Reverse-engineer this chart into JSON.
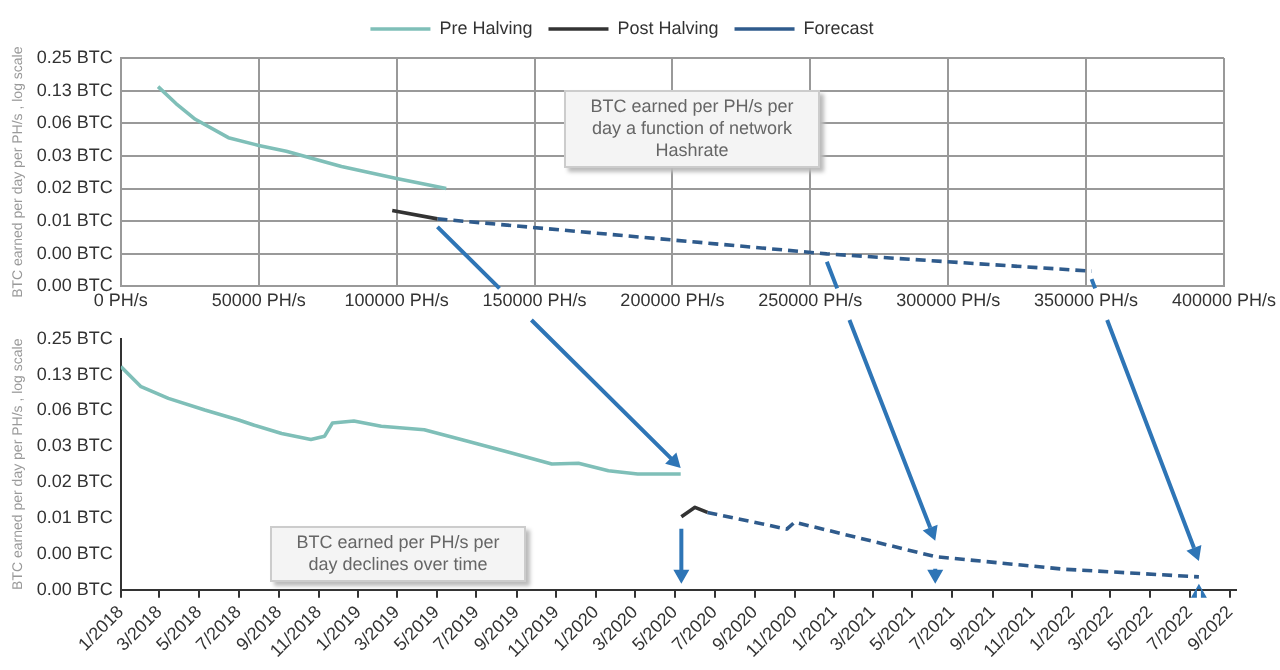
{
  "chart_data": [
    {
      "type": "line",
      "ylabel": "BTC earned per day per PH/s , log scale",
      "log": "y",
      "grid": true,
      "legend": "top",
      "marker": "none",
      "xlim": [
        0,
        400000
      ],
      "xticks": [
        {
          "value": 0,
          "label": "0 PH/s"
        },
        {
          "value": 50000,
          "label": "50000 PH/s"
        },
        {
          "value": 100000,
          "label": "100000 PH/s"
        },
        {
          "value": 150000,
          "label": "150000 PH/s"
        },
        {
          "value": 200000,
          "label": "200000 PH/s"
        },
        {
          "value": 250000,
          "label": "250000 PH/s"
        },
        {
          "value": 300000,
          "label": "300000 PH/s"
        },
        {
          "value": 350000,
          "label": "350000 PH/s"
        },
        {
          "value": 400000,
          "label": "400000 PH/s"
        }
      ],
      "ylim": [
        0.001953125,
        0.25
      ],
      "yticks": [
        {
          "value": 0.001953125,
          "label": "0.00 BTC"
        },
        {
          "value": 0.00390625,
          "label": "0.00 BTC"
        },
        {
          "value": 0.0078125,
          "label": "0.01 BTC"
        },
        {
          "value": 0.015625,
          "label": "0.02 BTC"
        },
        {
          "value": 0.03125,
          "label": "0.03 BTC"
        },
        {
          "value": 0.0625,
          "label": "0.06 BTC"
        },
        {
          "value": 0.125,
          "label": "0.13 BTC"
        },
        {
          "value": 0.25,
          "label": "0.25 BTC"
        }
      ],
      "annotations": [
        "BTC earned per PH/s per day a function of network Hashrate"
      ],
      "series": [
        {
          "name": "Pre Halving",
          "color": "#7fbfb8",
          "line_style": "solid",
          "x": [
            13500,
            20000,
            27000,
            39000,
            50000,
            60000,
            80000,
            100000,
            118000
          ],
          "values": [
            0.136,
            0.095,
            0.068,
            0.046,
            0.039,
            0.0345,
            0.025,
            0.0193,
            0.0156
          ]
        },
        {
          "name": "Post Halving",
          "color": "#333333",
          "line_style": "solid",
          "x": [
            98400,
            114800
          ],
          "values": [
            0.0098,
            0.0082
          ]
        },
        {
          "name": "Forecast",
          "color": "#2f5b8c",
          "line_style": "dashed",
          "x": [
            114800,
            256000,
            352000
          ],
          "values": [
            0.0082,
            0.0039,
            0.0027
          ]
        }
      ]
    },
    {
      "type": "line",
      "ylabel": "BTC earned per day per PH/s , log scale",
      "log": "y",
      "grid": false,
      "marker": "none",
      "xlim": [
        "2018-01-01",
        "2022-09-10"
      ],
      "xticks": [
        {
          "value": "2018-01-01",
          "label": "1/2018"
        },
        {
          "value": "2018-03-01",
          "label": "3/2018"
        },
        {
          "value": "2018-05-01",
          "label": "5/2018"
        },
        {
          "value": "2018-07-01",
          "label": "7/2018"
        },
        {
          "value": "2018-09-01",
          "label": "9/2018"
        },
        {
          "value": "2018-11-01",
          "label": "11/2018"
        },
        {
          "value": "2019-01-01",
          "label": "1/2019"
        },
        {
          "value": "2019-03-01",
          "label": "3/2019"
        },
        {
          "value": "2019-05-01",
          "label": "5/2019"
        },
        {
          "value": "2019-07-01",
          "label": "7/2019"
        },
        {
          "value": "2019-09-01",
          "label": "9/2019"
        },
        {
          "value": "2019-11-01",
          "label": "11/2019"
        },
        {
          "value": "2020-01-01",
          "label": "1/2020"
        },
        {
          "value": "2020-03-01",
          "label": "3/2020"
        },
        {
          "value": "2020-05-01",
          "label": "5/2020"
        },
        {
          "value": "2020-07-01",
          "label": "7/2020"
        },
        {
          "value": "2020-09-01",
          "label": "9/2020"
        },
        {
          "value": "2020-11-01",
          "label": "11/2020"
        },
        {
          "value": "2021-01-01",
          "label": "1/2021"
        },
        {
          "value": "2021-03-01",
          "label": "3/2021"
        },
        {
          "value": "2021-05-01",
          "label": "5/2021"
        },
        {
          "value": "2021-07-01",
          "label": "7/2021"
        },
        {
          "value": "2021-09-01",
          "label": "9/2021"
        },
        {
          "value": "2021-11-01",
          "label": "11/2021"
        },
        {
          "value": "2022-01-01",
          "label": "1/2022"
        },
        {
          "value": "2022-03-01",
          "label": "3/2022"
        },
        {
          "value": "2022-05-01",
          "label": "5/2022"
        },
        {
          "value": "2022-07-01",
          "label": "7/2022"
        },
        {
          "value": "2022-09-01",
          "label": "9/2022"
        }
      ],
      "ylim": [
        0.001953125,
        0.25
      ],
      "yticks": [
        {
          "value": 0.001953125,
          "label": "0.00 BTC"
        },
        {
          "value": 0.00390625,
          "label": "0.00 BTC"
        },
        {
          "value": 0.0078125,
          "label": "0.01 BTC"
        },
        {
          "value": 0.015625,
          "label": "0.02 BTC"
        },
        {
          "value": 0.03125,
          "label": "0.03 BTC"
        },
        {
          "value": 0.0625,
          "label": "0.06 BTC"
        },
        {
          "value": 0.125,
          "label": "0.13 BTC"
        },
        {
          "value": 0.25,
          "label": "0.25 BTC"
        }
      ],
      "annotations": [
        "BTC earned per PH/s per day declines over time"
      ],
      "series": [
        {
          "color": "#7fbfb8",
          "line_style": "solid",
          "x": [
            "2018-01-01",
            "2018-02-01",
            "2018-03-15",
            "2018-05-10",
            "2018-07-01",
            "2018-07-25",
            "2018-09-05",
            "2018-10-20",
            "2018-11-10",
            "2018-11-22",
            "2018-12-25",
            "2019-02-05",
            "2019-04-12",
            "2019-06-15",
            "2019-08-20",
            "2019-10-25",
            "2019-12-05",
            "2020-01-20",
            "2020-03-05",
            "2020-05-10"
          ],
          "values": [
            0.146,
            0.099,
            0.079,
            0.063,
            0.052,
            0.047,
            0.04,
            0.0357,
            0.038,
            0.049,
            0.051,
            0.046,
            0.043,
            0.0348,
            0.0278,
            0.0222,
            0.0225,
            0.0195,
            0.0183,
            0.0183
          ]
        },
        {
          "color": "#333333",
          "line_style": "solid",
          "x": [
            "2020-05-11",
            "2020-06-01",
            "2020-06-20"
          ],
          "values": [
            0.008,
            0.0096,
            0.0087
          ]
        },
        {
          "color": "#2f5b8c",
          "line_style": "dashed",
          "x": [
            "2020-06-20",
            "2020-10-20",
            "2020-11-01",
            "2021-06-05",
            "2021-12-20",
            "2022-07-15"
          ],
          "values": [
            0.0087,
            0.0063,
            0.0072,
            0.0037,
            0.0029,
            0.0025
          ]
        }
      ]
    }
  ]
}
